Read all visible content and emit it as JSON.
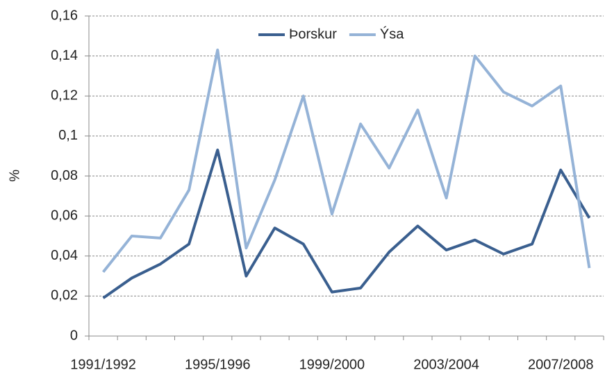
{
  "chart_data": {
    "type": "line",
    "ylabel": "%",
    "categories": [
      "1991/1992",
      null,
      null,
      null,
      "1995/1996",
      null,
      null,
      null,
      "1999/2000",
      null,
      null,
      null,
      "2003/2004",
      null,
      null,
      null,
      "2007/2008",
      null
    ],
    "series": [
      {
        "name": "Þorskur",
        "color": "#3a5f8f",
        "values": [
          0.019,
          0.029,
          0.036,
          0.046,
          0.093,
          0.03,
          0.054,
          0.046,
          0.022,
          0.024,
          0.042,
          0.055,
          0.043,
          0.048,
          0.041,
          0.046,
          0.083,
          0.059
        ]
      },
      {
        "name": "Ýsa",
        "color": "#95b3d7",
        "values": [
          0.032,
          0.05,
          0.049,
          0.073,
          0.143,
          0.044,
          0.078,
          0.12,
          0.061,
          0.106,
          0.084,
          0.113,
          0.069,
          0.14,
          0.122,
          0.115,
          0.125,
          0.034
        ]
      }
    ],
    "ylim": [
      0,
      0.16
    ],
    "yticks": [
      0,
      {
        "value": 0.02,
        "label": "0,02"
      },
      {
        "value": 0.04,
        "label": "0,04"
      },
      {
        "value": 0.06,
        "label": "0,06"
      },
      {
        "value": 0.08,
        "label": "0,08"
      },
      {
        "value": 0.1,
        "label": "0,1"
      },
      {
        "value": 0.12,
        "label": "0,12"
      },
      {
        "value": 0.14,
        "label": "0,14"
      },
      {
        "value": 0.16,
        "label": "0,16"
      }
    ],
    "grid": true,
    "legend": "top"
  }
}
